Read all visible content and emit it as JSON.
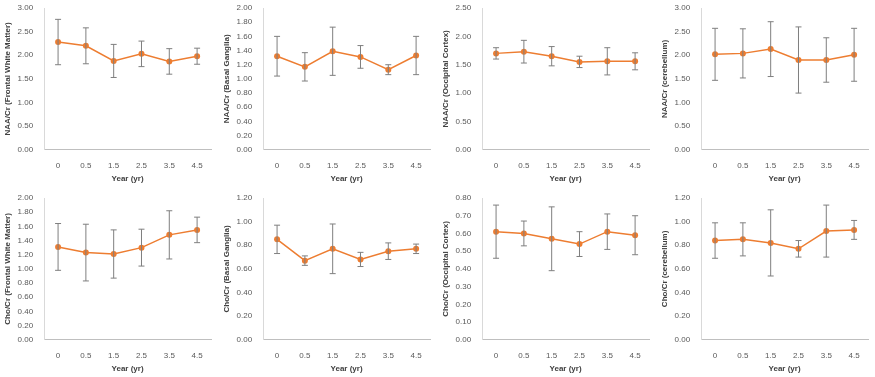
{
  "chart_data": [
    {
      "type": "line",
      "x_label": "Year (yr)",
      "y_label": "NAA/Cr (Frontal White Matter)",
      "categories": [
        "0",
        "0.5",
        "1.5",
        "2.5",
        "3.5",
        "4.5"
      ],
      "values": [
        2.28,
        2.2,
        1.88,
        2.03,
        1.87,
        1.98
      ],
      "errors": [
        0.48,
        0.38,
        0.35,
        0.27,
        0.27,
        0.17
      ],
      "color": "#ed7d31",
      "marker": "circle",
      "grid": false,
      "ylim": [
        0,
        3
      ],
      "yticks": [
        {
          "value": 0,
          "label": "0.00"
        },
        {
          "value": 0.5,
          "label": "0.50"
        },
        {
          "value": 1,
          "label": "1.00"
        },
        {
          "value": 1.5,
          "label": "1.50"
        },
        {
          "value": 2,
          "label": "2.00"
        },
        {
          "value": 2.5,
          "label": "2.50"
        },
        {
          "value": 3,
          "label": "3.00"
        }
      ]
    },
    {
      "type": "line",
      "x_label": "Year (yr)",
      "y_label": "NAA/Cr (Basal Ganglia)",
      "categories": [
        "0",
        "0.5",
        "1.5",
        "2.5",
        "3.5",
        "4.5"
      ],
      "values": [
        1.32,
        1.17,
        1.39,
        1.31,
        1.13,
        1.33
      ],
      "errors": [
        0.28,
        0.2,
        0.34,
        0.16,
        0.07,
        0.27
      ],
      "color": "#ed7d31",
      "marker": "circle",
      "grid": false,
      "ylim": [
        0,
        2
      ],
      "yticks": [
        {
          "value": 0,
          "label": "0.00"
        },
        {
          "value": 0.2,
          "label": "0.20"
        },
        {
          "value": 0.4,
          "label": "0.40"
        },
        {
          "value": 0.6,
          "label": "0.60"
        },
        {
          "value": 0.8,
          "label": "0.80"
        },
        {
          "value": 1,
          "label": "1.00"
        },
        {
          "value": 1.2,
          "label": "1.20"
        },
        {
          "value": 1.4,
          "label": "1.40"
        },
        {
          "value": 1.6,
          "label": "1.60"
        },
        {
          "value": 1.8,
          "label": "1.80"
        },
        {
          "value": 2,
          "label": "2.00"
        }
      ]
    },
    {
      "type": "line",
      "x_label": "Year (yr)",
      "y_label": "NAA/Cr (Occipital Cortex)",
      "categories": [
        "0",
        "0.5",
        "1.5",
        "2.5",
        "3.5",
        "4.5"
      ],
      "values": [
        1.7,
        1.73,
        1.65,
        1.55,
        1.56,
        1.56
      ],
      "errors": [
        0.1,
        0.2,
        0.17,
        0.1,
        0.24,
        0.15
      ],
      "color": "#ed7d31",
      "marker": "circle",
      "grid": false,
      "ylim": [
        0,
        2.5
      ],
      "yticks": [
        {
          "value": 0,
          "label": "0.00"
        },
        {
          "value": 0.5,
          "label": "0.50"
        },
        {
          "value": 1,
          "label": "1.00"
        },
        {
          "value": 1.5,
          "label": "1.50"
        },
        {
          "value": 2,
          "label": "2.00"
        },
        {
          "value": 2.5,
          "label": "2.50"
        }
      ]
    },
    {
      "type": "line",
      "x_label": "Year (yr)",
      "y_label": "NAA/Cr (cerebellum)",
      "categories": [
        "0",
        "0.5",
        "1.5",
        "2.5",
        "3.5",
        "4.5"
      ],
      "values": [
        2.02,
        2.04,
        2.13,
        1.9,
        1.9,
        2.01
      ],
      "errors": [
        0.55,
        0.52,
        0.58,
        0.7,
        0.47,
        0.56
      ],
      "color": "#ed7d31",
      "marker": "circle",
      "grid": false,
      "ylim": [
        0,
        3
      ],
      "yticks": [
        {
          "value": 0,
          "label": "0.00"
        },
        {
          "value": 0.5,
          "label": "0.50"
        },
        {
          "value": 1,
          "label": "1.00"
        },
        {
          "value": 1.5,
          "label": "1.50"
        },
        {
          "value": 2,
          "label": "2.00"
        },
        {
          "value": 2.5,
          "label": "2.50"
        },
        {
          "value": 3,
          "label": "3.00"
        }
      ]
    },
    {
      "type": "line",
      "x_label": "Year (yr)",
      "y_label": "Cho/Cr (Frontal White Matter)",
      "categories": [
        "0",
        "0.5",
        "1.5",
        "2.5",
        "3.5",
        "4.5"
      ],
      "values": [
        1.31,
        1.23,
        1.21,
        1.3,
        1.48,
        1.55
      ],
      "errors": [
        0.33,
        0.4,
        0.34,
        0.26,
        0.34,
        0.18
      ],
      "color": "#ed7d31",
      "marker": "circle",
      "grid": false,
      "ylim": [
        0,
        2
      ],
      "yticks": [
        {
          "value": 0,
          "label": "0.00"
        },
        {
          "value": 0.2,
          "label": "0.20"
        },
        {
          "value": 0.4,
          "label": "0.40"
        },
        {
          "value": 0.6,
          "label": "0.60"
        },
        {
          "value": 0.8,
          "label": "0.80"
        },
        {
          "value": 1,
          "label": "1.00"
        },
        {
          "value": 1.2,
          "label": "1.20"
        },
        {
          "value": 1.4,
          "label": "1.40"
        },
        {
          "value": 1.6,
          "label": "1.60"
        },
        {
          "value": 1.8,
          "label": "1.80"
        },
        {
          "value": 2,
          "label": "2.00"
        }
      ]
    },
    {
      "type": "line",
      "x_label": "Year (yr)",
      "y_label": "Cho/Cr (Basal Ganglia)",
      "categories": [
        "0",
        "0.5",
        "1.5",
        "2.5",
        "3.5",
        "4.5"
      ],
      "values": [
        0.85,
        0.67,
        0.77,
        0.68,
        0.75,
        0.77
      ],
      "errors": [
        0.12,
        0.04,
        0.21,
        0.06,
        0.07,
        0.04
      ],
      "color": "#ed7d31",
      "marker": "circle",
      "grid": false,
      "ylim": [
        0,
        1.2
      ],
      "yticks": [
        {
          "value": 0,
          "label": "0.00"
        },
        {
          "value": 0.2,
          "label": "0.20"
        },
        {
          "value": 0.4,
          "label": "0.40"
        },
        {
          "value": 0.6,
          "label": "0.60"
        },
        {
          "value": 0.8,
          "label": "0.80"
        },
        {
          "value": 1,
          "label": "1.00"
        },
        {
          "value": 1.2,
          "label": "1.20"
        }
      ]
    },
    {
      "type": "line",
      "x_label": "Year (yr)",
      "y_label": "Cho/Cr (Occipital Cortex)",
      "categories": [
        "0",
        "0.5",
        "1.5",
        "2.5",
        "3.5",
        "4.5"
      ],
      "values": [
        0.61,
        0.6,
        0.57,
        0.54,
        0.61,
        0.59
      ],
      "errors": [
        0.15,
        0.07,
        0.18,
        0.07,
        0.1,
        0.11
      ],
      "color": "#ed7d31",
      "marker": "circle",
      "grid": false,
      "ylim": [
        0,
        0.8
      ],
      "yticks": [
        {
          "value": 0,
          "label": "0.00"
        },
        {
          "value": 0.1,
          "label": "0.10"
        },
        {
          "value": 0.2,
          "label": "0.20"
        },
        {
          "value": 0.3,
          "label": "0.30"
        },
        {
          "value": 0.4,
          "label": "0.40"
        },
        {
          "value": 0.5,
          "label": "0.50"
        },
        {
          "value": 0.6,
          "label": "0.60"
        },
        {
          "value": 0.7,
          "label": "0.70"
        },
        {
          "value": 0.8,
          "label": "0.80"
        }
      ]
    },
    {
      "type": "line",
      "x_label": "Year (yr)",
      "y_label": "Cho/Cr (cerebellum)",
      "categories": [
        "0",
        "0.5",
        "1.5",
        "2.5",
        "3.5",
        "4.5"
      ],
      "values": [
        0.84,
        0.85,
        0.82,
        0.77,
        0.92,
        0.93
      ],
      "errors": [
        0.15,
        0.14,
        0.28,
        0.07,
        0.22,
        0.08
      ],
      "color": "#ed7d31",
      "marker": "circle",
      "grid": false,
      "ylim": [
        0,
        1.2
      ],
      "yticks": [
        {
          "value": 0,
          "label": "0.00"
        },
        {
          "value": 0.2,
          "label": "0.20"
        },
        {
          "value": 0.4,
          "label": "0.40"
        },
        {
          "value": 0.6,
          "label": "0.60"
        },
        {
          "value": 0.8,
          "label": "0.80"
        },
        {
          "value": 1,
          "label": "1.00"
        },
        {
          "value": 1.2,
          "label": "1.20"
        }
      ]
    }
  ]
}
